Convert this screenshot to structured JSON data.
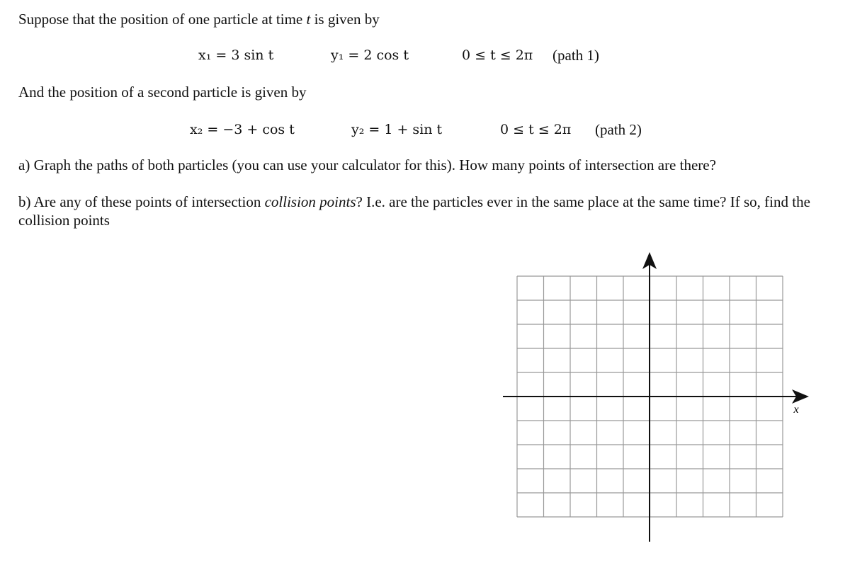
{
  "intro": {
    "before": "Suppose that the position of one particle at time ",
    "variable": "t",
    "after": " is given by"
  },
  "path1": {
    "x": "x₁ = 3 sin t",
    "y": "y₁ = 2 cos t",
    "range": "0 ≤ t ≤ 2π",
    "label": "(path 1)"
  },
  "second": "And the position of a second particle is given by",
  "path2": {
    "x": "x₂ = −3 + cos t",
    "y": "y₂ = 1 + sin t",
    "range": "0 ≤ t ≤ 2π",
    "label": "(path 2)"
  },
  "question_a": "a) Graph the paths of both particles (you can use your calculator for this). How many points of intersection are there?",
  "question_b": {
    "before": "b) Are any of these points of intersection ",
    "emphasis": "collision points",
    "after": "? I.e. are the particles ever in the same place at the same time? If so, find the collision points"
  },
  "graph": {
    "x_label": "x"
  }
}
